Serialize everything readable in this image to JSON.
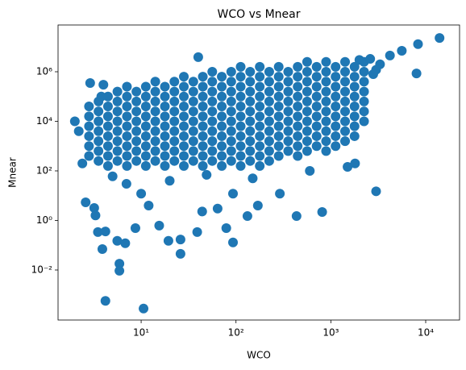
{
  "chart_data": {
    "type": "scatter",
    "title": "WCO vs Mnear",
    "x_label": "WCO",
    "y_label": "Mnear",
    "color": "#1f77b4",
    "x_log": true,
    "y_log": true,
    "xlim": [
      1.33,
      22750
    ],
    "ylim": [
      9.6e-05,
      77000000
    ],
    "xticks": [
      {
        "value": 10,
        "label": "10¹"
      },
      {
        "value": 100,
        "label": "10²"
      },
      {
        "value": 1000,
        "label": "10³"
      },
      {
        "value": 10000,
        "label": "10⁴"
      }
    ],
    "yticks": [
      {
        "value": 0.01,
        "label": "10⁻²"
      },
      {
        "value": 1,
        "label": "10⁰"
      },
      {
        "value": 100,
        "label": "10²"
      },
      {
        "value": 10000,
        "label": "10⁴"
      },
      {
        "value": 1000000,
        "label": "10⁶"
      }
    ],
    "x": [
      2.82,
      2.82,
      2.82,
      2.82,
      2.82,
      2.82,
      3.55,
      3.55,
      3.55,
      3.55,
      3.55,
      3.55,
      3.55,
      4.47,
      4.47,
      4.47,
      4.47,
      4.47,
      4.47,
      4.47,
      4.47,
      5.62,
      5.62,
      5.62,
      5.62,
      5.62,
      5.62,
      5.62,
      5.62,
      7.08,
      7.08,
      7.08,
      7.08,
      7.08,
      7.08,
      7.08,
      7.08,
      7.08,
      8.91,
      8.91,
      8.91,
      8.91,
      8.91,
      8.91,
      8.91,
      8.91,
      11.2,
      11.2,
      11.2,
      11.2,
      11.2,
      11.2,
      11.2,
      11.2,
      11.2,
      14.1,
      14.1,
      14.1,
      14.1,
      14.1,
      14.1,
      14.1,
      14.1,
      14.1,
      17.8,
      17.8,
      17.8,
      17.8,
      17.8,
      17.8,
      17.8,
      17.8,
      17.8,
      22.4,
      22.4,
      22.4,
      22.4,
      22.4,
      22.4,
      22.4,
      22.4,
      22.4,
      28.2,
      28.2,
      28.2,
      28.2,
      28.2,
      28.2,
      28.2,
      28.2,
      28.2,
      28.2,
      35.5,
      35.5,
      35.5,
      35.5,
      35.5,
      35.5,
      35.5,
      35.5,
      35.5,
      44.7,
      44.7,
      44.7,
      44.7,
      44.7,
      44.7,
      44.7,
      44.7,
      44.7,
      44.7,
      56.2,
      56.2,
      56.2,
      56.2,
      56.2,
      56.2,
      56.2,
      56.2,
      56.2,
      56.2,
      70.8,
      70.8,
      70.8,
      70.8,
      70.8,
      70.8,
      70.8,
      70.8,
      70.8,
      70.8,
      89.1,
      89.1,
      89.1,
      89.1,
      89.1,
      89.1,
      89.1,
      89.1,
      89.1,
      89.1,
      112,
      112,
      112,
      112,
      112,
      112,
      112,
      112,
      112,
      112,
      112,
      141,
      141,
      141,
      141,
      141,
      141,
      141,
      141,
      141,
      141,
      178,
      178,
      178,
      178,
      178,
      178,
      178,
      178,
      178,
      178,
      178,
      224,
      224,
      224,
      224,
      224,
      224,
      224,
      224,
      224,
      224,
      282,
      282,
      282,
      282,
      282,
      282,
      282,
      282,
      282,
      282,
      355,
      355,
      355,
      355,
      355,
      355,
      355,
      355,
      355,
      447,
      447,
      447,
      447,
      447,
      447,
      447,
      447,
      447,
      447,
      562,
      562,
      562,
      562,
      562,
      562,
      562,
      562,
      562,
      562,
      708,
      708,
      708,
      708,
      708,
      708,
      708,
      708,
      708,
      891,
      891,
      891,
      891,
      891,
      891,
      891,
      891,
      891,
      891,
      1122,
      1122,
      1122,
      1122,
      1122,
      1122,
      1122,
      1122,
      1122,
      1413,
      1413,
      1413,
      1413,
      1413,
      1413,
      1413,
      1413,
      1413,
      1778,
      1778,
      1778,
      1778,
      1778,
      1778,
      1778,
      1778,
      2239,
      2239,
      2239,
      2239,
      2239,
      2239,
      2239,
      14000,
      8300,
      5600,
      4200,
      8000,
      2600,
      40,
      2.9,
      2.0,
      2.2,
      2.4,
      2.6,
      3.2,
      3.3,
      3.5,
      3.9,
      4.2,
      5.6,
      5.9,
      5.9,
      4.2,
      10.6,
      6.8,
      8.7,
      15.5,
      19.4,
      26,
      26,
      39,
      79,
      93,
      132,
      290,
      435,
      810,
      1500,
      3000,
      49,
      10,
      12,
      64,
      170,
      93,
      44,
      4,
      3.8,
      3300,
      3000,
      2000,
      2800,
      1800,
      600,
      5,
      7,
      20,
      150
    ],
    "values": [
      398,
      1000,
      2512,
      6310,
      15849,
      39811,
      251,
      631,
      1585,
      3981,
      10000,
      25119,
      63096,
      158,
      398,
      1000,
      2512,
      6310,
      15849,
      39811,
      100000,
      251,
      631,
      1585,
      3981,
      10000,
      25119,
      63096,
      158489,
      158,
      398,
      1000,
      2512,
      6310,
      15849,
      39811,
      100000,
      251189,
      251,
      631,
      1585,
      3981,
      10000,
      25119,
      63096,
      158489,
      158,
      398,
      1000,
      2512,
      6310,
      15849,
      39811,
      100000,
      251189,
      251,
      631,
      1585,
      3981,
      10000,
      25119,
      63096,
      158489,
      398107,
      158,
      398,
      1000,
      2512,
      6310,
      15849,
      39811,
      100000,
      251189,
      251,
      631,
      1585,
      3981,
      10000,
      25119,
      63096,
      158489,
      398107,
      158,
      398,
      1000,
      2512,
      6310,
      15849,
      39811,
      100000,
      251189,
      630957,
      251,
      631,
      1585,
      3981,
      10000,
      25119,
      63096,
      158489,
      398107,
      158,
      398,
      1000,
      2512,
      6310,
      15849,
      39811,
      100000,
      251189,
      630957,
      251,
      631,
      1585,
      3981,
      10000,
      25119,
      63096,
      158489,
      398107,
      1000000,
      158,
      398,
      1000,
      2512,
      6310,
      15849,
      39811,
      100000,
      251189,
      630957,
      251,
      631,
      1585,
      3981,
      10000,
      25119,
      63096,
      158489,
      398107,
      1000000,
      158,
      398,
      1000,
      2512,
      6310,
      15849,
      39811,
      100000,
      251189,
      630957,
      1584893,
      251,
      631,
      1585,
      3981,
      10000,
      25119,
      63096,
      158489,
      398107,
      1000000,
      158,
      398,
      1000,
      2512,
      6310,
      15849,
      39811,
      100000,
      251189,
      630957,
      1584893,
      251,
      631,
      1585,
      3981,
      10000,
      25119,
      63096,
      158489,
      398107,
      1000000,
      398,
      1000,
      2512,
      6310,
      15849,
      39811,
      100000,
      251189,
      630957,
      1584893,
      631,
      1585,
      3981,
      10000,
      25119,
      63096,
      158489,
      398107,
      1000000,
      398,
      1000,
      2512,
      6310,
      15849,
      39811,
      100000,
      251189,
      630957,
      1584893,
      631,
      1585,
      3981,
      10000,
      25119,
      63096,
      158489,
      398107,
      1000000,
      2511886,
      1000,
      2512,
      6310,
      15849,
      39811,
      100000,
      251189,
      630957,
      1584893,
      631,
      1585,
      3981,
      10000,
      25119,
      63096,
      158489,
      398107,
      1000000,
      2511886,
      1000,
      2512,
      6310,
      15849,
      39811,
      100000,
      251189,
      630957,
      1584893,
      1585,
      3981,
      10000,
      25119,
      63096,
      158489,
      398107,
      1000000,
      2511886,
      2512,
      6310,
      15849,
      39811,
      100000,
      251189,
      630957,
      1584893,
      10000,
      25119,
      63096,
      158489,
      398107,
      1000000,
      2511886,
      23000000,
      13000000,
      7000000,
      4500000,
      850000,
      3300000,
      3900000,
      350000,
      10000,
      4000,
      200,
      5.4,
      3.2,
      1.6,
      0.34,
      0.07,
      0.36,
      0.15,
      0.018,
      0.0093,
      0.00057,
      0.00028,
      0.12,
      0.49,
      0.62,
      0.15,
      0.17,
      0.045,
      0.34,
      0.49,
      0.13,
      1.5,
      12,
      1.5,
      2.2,
      145,
      15,
      69,
      12,
      4,
      3,
      4,
      12,
      2.3,
      300000,
      100000,
      2000000,
      1200000,
      3000000,
      800000,
      200,
      100,
      60,
      30,
      40,
      50
    ]
  }
}
